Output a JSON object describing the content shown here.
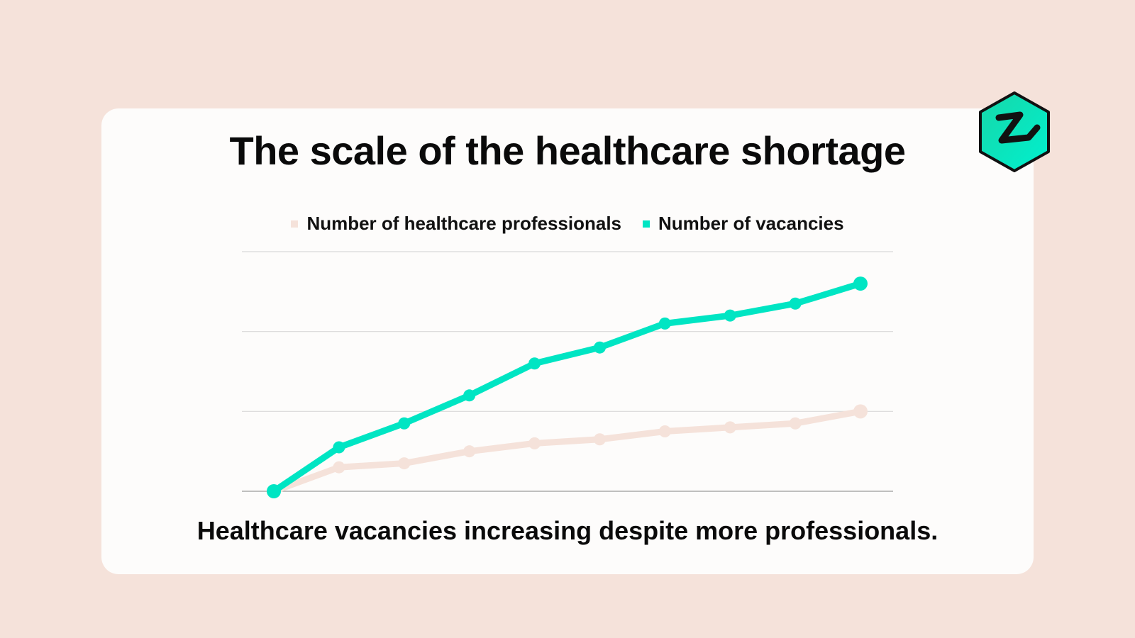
{
  "title": "The scale of the healthcare shortage",
  "subtitle": "Healthcare vacancies increasing despite more professionals.",
  "logo_icon": "hexagon-z-logo",
  "colors": {
    "background": "#f5e2da",
    "card": "#fdfcfb",
    "accent": "#00e5c3",
    "professionals": "#f5e2da",
    "text": "#0a0a0a"
  },
  "chart_data": {
    "type": "line",
    "x": [
      1,
      2,
      3,
      4,
      5,
      6,
      7,
      8,
      9,
      10
    ],
    "ylim": [
      0,
      3
    ],
    "grid": true,
    "legend_position": "top-center",
    "series": [
      {
        "name": "Number of healthcare professionals",
        "color": "#f5e2da",
        "values": [
          0,
          0.3,
          0.35,
          0.5,
          0.6,
          0.65,
          0.75,
          0.8,
          0.85,
          1.0
        ]
      },
      {
        "name": "Number of vacancies",
        "color": "#00e5c3",
        "values": [
          0,
          0.55,
          0.85,
          1.2,
          1.6,
          1.8,
          2.1,
          2.2,
          2.35,
          2.6
        ]
      }
    ]
  }
}
